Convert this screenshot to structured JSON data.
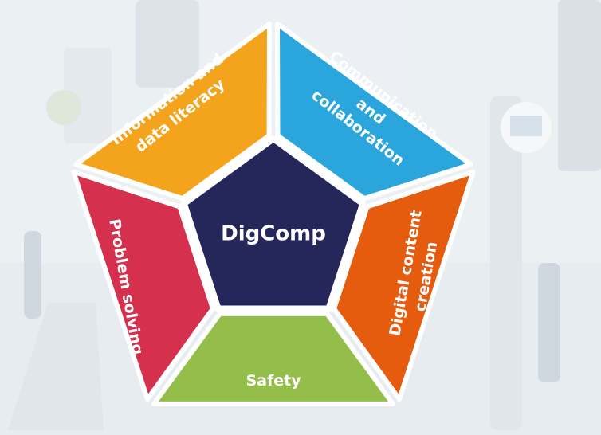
{
  "center": {
    "label": "DigComp",
    "color": "#25275a"
  },
  "areas": [
    {
      "id": "information",
      "lines": [
        "Information and",
        "data literacy"
      ],
      "color": "#f4a41c"
    },
    {
      "id": "communication",
      "lines": [
        "Communication",
        "and",
        "collaboration"
      ],
      "color": "#2aa6dc"
    },
    {
      "id": "content",
      "lines": [
        "Digital content",
        "creation"
      ],
      "color": "#e65c0f"
    },
    {
      "id": "safety",
      "lines": [
        "Safety"
      ],
      "color": "#93be4a"
    },
    {
      "id": "problem",
      "lines": [
        "Problem solving"
      ],
      "color": "#d6304f"
    }
  ]
}
